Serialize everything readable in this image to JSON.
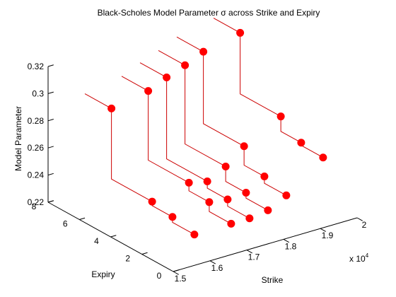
{
  "chart_data": {
    "type": "scatter",
    "subtype": "3d-stem",
    "title": "Black-Scholes Model Parameter σ across Strike and Expiry",
    "xlabel": "Strike",
    "ylabel": "Expiry",
    "zlabel": "Model Parameter",
    "x_multiplier_label": "x 10",
    "x_multiplier_exp": "4",
    "xlim": [
      1.5,
      2.0
    ],
    "ylim": [
      0,
      8
    ],
    "zlim": [
      0.22,
      0.32
    ],
    "x_ticks": [
      "1.5",
      "1.6",
      "1.7",
      "1.8",
      "1.9",
      "2"
    ],
    "y_ticks": [
      "0",
      "2",
      "4",
      "6",
      "8"
    ],
    "z_ticks": [
      "0.22",
      "0.24",
      "0.26",
      "0.28",
      "0.3",
      "0.32"
    ],
    "grid": false,
    "marker_color": "#ff0000",
    "stem_color": "#cc0000",
    "series": [
      {
        "x": 1.6,
        "points": [
          {
            "y": 6.3,
            "z": 0.292
          },
          {
            "y": 3.7,
            "z": 0.24
          },
          {
            "y": 2.4,
            "z": 0.237
          },
          {
            "y": 1.0,
            "z": 0.233
          }
        ]
      },
      {
        "x": 1.7,
        "points": [
          {
            "y": 6.3,
            "z": 0.297
          },
          {
            "y": 3.7,
            "z": 0.246
          },
          {
            "y": 2.4,
            "z": 0.24
          },
          {
            "y": 1.0,
            "z": 0.233
          }
        ]
      },
      {
        "x": 1.75,
        "points": [
          {
            "y": 6.3,
            "z": 0.303
          },
          {
            "y": 3.7,
            "z": 0.243
          },
          {
            "y": 2.4,
            "z": 0.238
          },
          {
            "y": 1.0,
            "z": 0.233
          }
        ]
      },
      {
        "x": 1.8,
        "points": [
          {
            "y": 6.3,
            "z": 0.308
          },
          {
            "y": 3.7,
            "z": 0.25
          },
          {
            "y": 2.4,
            "z": 0.239
          },
          {
            "y": 1.0,
            "z": 0.235
          }
        ]
      },
      {
        "x": 1.85,
        "points": [
          {
            "y": 6.3,
            "z": 0.314
          },
          {
            "y": 3.7,
            "z": 0.261
          },
          {
            "y": 2.4,
            "z": 0.247
          },
          {
            "y": 1.0,
            "z": 0.242
          }
        ]
      },
      {
        "x": 1.95,
        "points": [
          {
            "y": 6.3,
            "z": 0.32
          },
          {
            "y": 3.7,
            "z": 0.275
          },
          {
            "y": 2.4,
            "z": 0.264
          },
          {
            "y": 1.0,
            "z": 0.262
          }
        ]
      }
    ]
  }
}
